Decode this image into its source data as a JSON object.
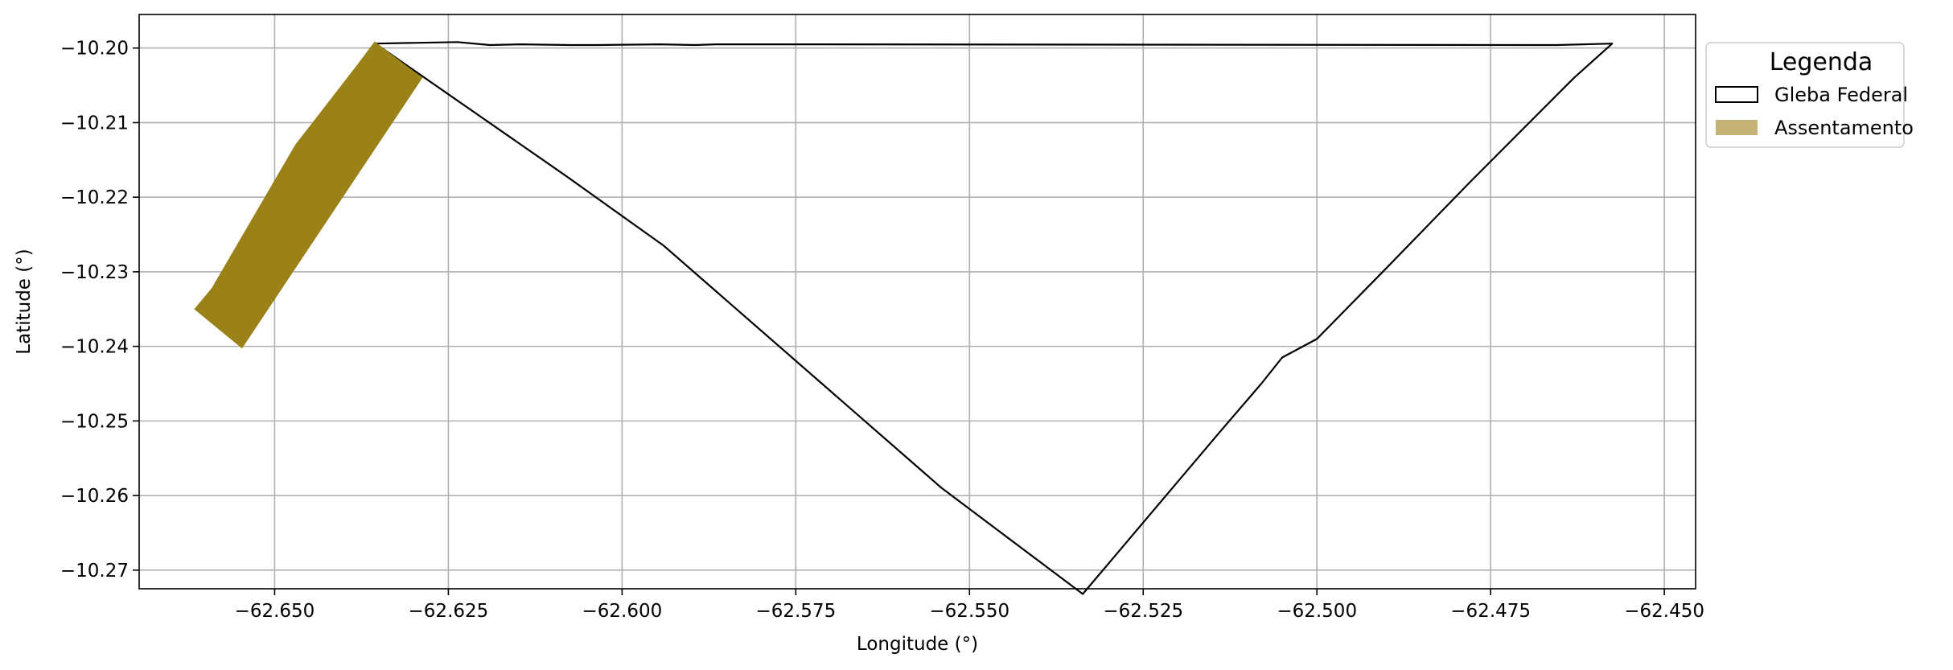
{
  "chart_data": {
    "type": "map",
    "xlabel": "Longitude (°)",
    "ylabel": "Latitude (°)",
    "xlim": [
      -62.6695,
      -62.4455
    ],
    "ylim": [
      -10.2725,
      -10.1955
    ],
    "xticks": [
      -62.65,
      -62.625,
      -62.6,
      -62.575,
      -62.55,
      -62.525,
      -62.5,
      -62.475,
      -62.45
    ],
    "xtick_labels": [
      "−62.650",
      "−62.625",
      "−62.600",
      "−62.575",
      "−62.550",
      "−62.525",
      "−62.500",
      "−62.475",
      "−62.450"
    ],
    "yticks": [
      -10.2,
      -10.21,
      -10.22,
      -10.23,
      -10.24,
      -10.25,
      -10.26,
      -10.27
    ],
    "ytick_labels": [
      "−10.20",
      "−10.21",
      "−10.22",
      "−10.23",
      "−10.24",
      "−10.25",
      "−10.26",
      "−10.27"
    ],
    "grid": true,
    "legend": {
      "title": "Legenda",
      "placement": "outside-top-right",
      "entries": [
        {
          "label": "Gleba Federal",
          "style": "outline",
          "color": "#000000"
        },
        {
          "label": "Assentamento",
          "style": "fill",
          "color": "#c2b276"
        }
      ]
    },
    "layers": [
      {
        "name": "Gleba Federal",
        "type": "polygon-outline",
        "stroke": "#000000",
        "coordinates": [
          [
            -62.6355,
            -10.1994
          ],
          [
            -62.6237,
            -10.1992
          ],
          [
            -62.619,
            -10.1996
          ],
          [
            -62.6145,
            -10.1995
          ],
          [
            -62.6075,
            -10.1996
          ],
          [
            -62.6035,
            -10.1996
          ],
          [
            -62.5945,
            -10.1995
          ],
          [
            -62.5895,
            -10.1996
          ],
          [
            -62.5865,
            -10.1995
          ],
          [
            -62.5795,
            -10.1995
          ],
          [
            -62.4655,
            -10.1996
          ],
          [
            -62.4575,
            -10.1994
          ],
          [
            -62.463,
            -10.204
          ],
          [
            -62.478,
            -10.218
          ],
          [
            -62.49,
            -10.2295
          ],
          [
            -62.5,
            -10.239
          ],
          [
            -62.505,
            -10.2415
          ],
          [
            -62.508,
            -10.245
          ],
          [
            -62.514,
            -10.2515
          ],
          [
            -62.5337,
            -10.2732
          ],
          [
            -62.554,
            -10.259
          ],
          [
            -62.594,
            -10.2265
          ],
          [
            -62.608,
            -10.2172
          ],
          [
            -62.6355,
            -10.1994
          ]
        ]
      },
      {
        "name": "Assentamento",
        "type": "polygon-fill",
        "fill": "#9a8218",
        "coordinates": [
          [
            -62.6356,
            -10.1992
          ],
          [
            -62.6288,
            -10.204
          ],
          [
            -62.6547,
            -10.2402
          ],
          [
            -62.6615,
            -10.235
          ],
          [
            -62.659,
            -10.2322
          ],
          [
            -62.647,
            -10.213
          ],
          [
            -62.638,
            -10.2022
          ],
          [
            -62.6356,
            -10.1992
          ]
        ]
      }
    ]
  }
}
